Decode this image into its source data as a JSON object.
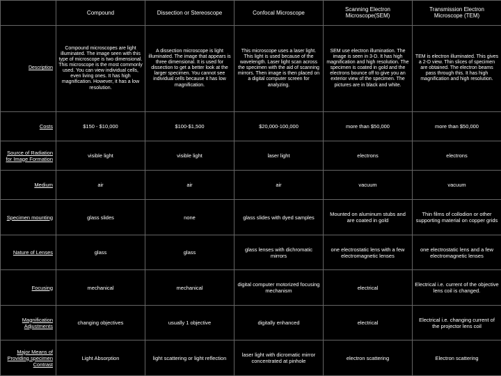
{
  "columns": [
    "",
    "Compound",
    "Dissection or Stereoscope",
    "Confocal Microscope",
    "Scanning Electron Microscope(SEM)",
    "Transmission Electron Microscope (TEM)"
  ],
  "rows": {
    "description": {
      "label": "Description",
      "cells": [
        "Compound microscopes are light illuminated. The image seen with this type of microscope is two dimensional. This microscope is the most commonly used. You can view individual cells, even living ones. It has high magnification. However, it has a low resolution.",
        "A dissection microscope is light illuminated. The image that appears is three dimensional. It is used for dissection to get a better look at the larger specimen. You cannot see individual cells because it has low magnification.",
        "This microscope uses a laser light. This light is used because of the wavelength. Laser light scan across the specimen with the aid of scanning mirrors. Then image is then placed on a digital computer screen for analyzing.",
        "SEM use electron illumination. The image is seen in 3-D. It has high magnification and high resolution. The specimen is coated in gold and the electrons bounce off to give you an exterior view of the specimen. The pictures are in black and white.",
        "TEM is electron illuminated. This gives a 2-D view. Thin slices of specimen are obtained. The electron beams pass through this. It has high magnification and high resolution."
      ]
    },
    "costs": {
      "label": "Costs",
      "cells": [
        "$150 - $10,000",
        "$100-$1,500",
        "$20,000-100,000",
        "more than $50,000",
        "more than $50,000"
      ]
    },
    "radiation": {
      "label": "Source of Radiation for Image Formation",
      "cells": [
        "visible light",
        "visible light",
        "laser light",
        "electrons",
        "electrons"
      ]
    },
    "medium": {
      "label": "Medium",
      "cells": [
        "air",
        "air",
        "air",
        "vacuum",
        "vacuum"
      ]
    },
    "mounting": {
      "label": "Specimen mounting",
      "cells": [
        "glass slides",
        "none",
        "glass slides with dyed samples",
        "Mounted on aluminum stubs and are coated in gold",
        "Thin films of collodion or other supporting material on copper grids"
      ]
    },
    "lenses": {
      "label": "Nature of Lenses",
      "cells": [
        "glass",
        "glass",
        "glass lenses with dichromatic mirrors",
        "one electrostatic lens with a few electromagnetic lenses",
        "one electrostatic lens and a few electromagnetic lenses"
      ]
    },
    "focusing": {
      "label": "Focusing",
      "cells": [
        "mechanical",
        "mechanical",
        "digital computer motorized focusing mechanism",
        "electrical",
        "Electrical i.e. current of the objective lens coil is changed."
      ]
    },
    "magnification": {
      "label": "Magnification Adjustments",
      "cells": [
        "changing objectives",
        "usually 1 objective",
        "digitally enhanced",
        "electrical",
        "Electrical i.e. changing current of the projector lens coil"
      ]
    },
    "contrast": {
      "label": "Major Means of Providing specimen Contrast",
      "cells": [
        "Light Absorption",
        "light scattering or light reflection",
        "laser light with dicromatic mirror concentrated at pinhole",
        "electron scattering",
        "Electron scattering"
      ]
    }
  }
}
